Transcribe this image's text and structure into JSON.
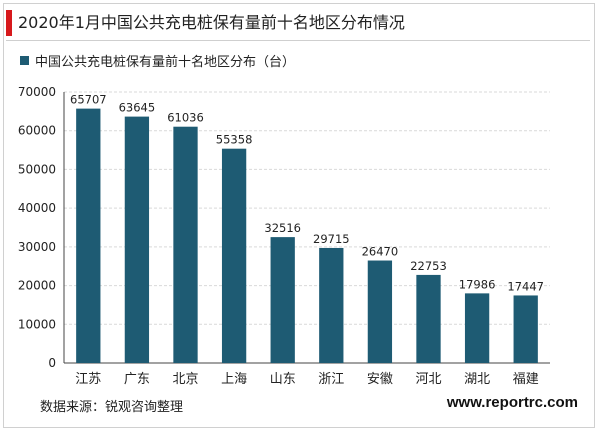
{
  "header": {
    "title": "2020年1月中国公共充电桩保有量前十名地区分布情况",
    "accent_color": "#d7191c"
  },
  "footer": {
    "source": "数据来源：锐观咨询整理",
    "site": "www.reportrc.com"
  },
  "chart_data": {
    "type": "bar",
    "categories": [
      "江苏",
      "广东",
      "北京",
      "上海",
      "山东",
      "浙江",
      "安徽",
      "河北",
      "湖北",
      "福建"
    ],
    "series": [
      {
        "name": "中国公共充电桩保有量前十名地区分布（台）",
        "values": [
          65707,
          63645,
          61036,
          55358,
          32516,
          29715,
          26470,
          22753,
          17986,
          17447
        ],
        "color": "#1e5b73"
      }
    ],
    "ylim": [
      0,
      70000
    ],
    "yticks": [
      0,
      10000,
      20000,
      30000,
      40000,
      50000,
      60000,
      70000
    ],
    "grid": true,
    "legend_position": "top-left",
    "data_labels": true
  }
}
